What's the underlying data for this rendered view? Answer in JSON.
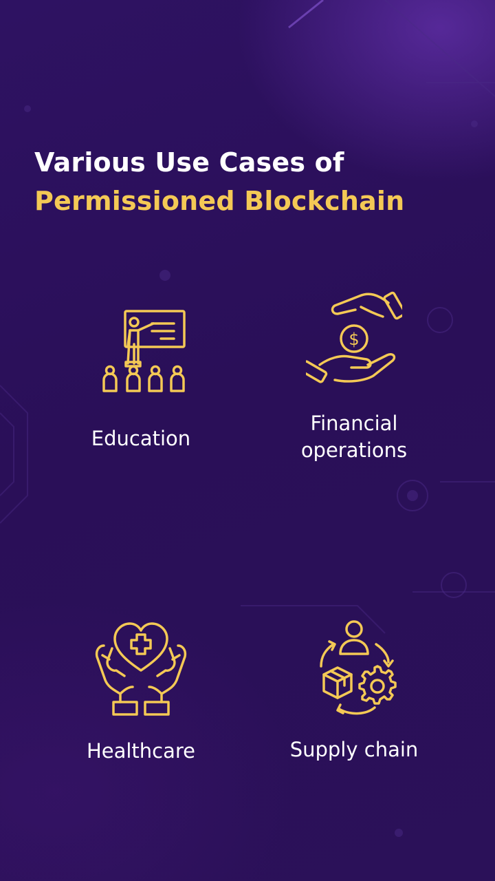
{
  "title": {
    "line1": "Various Use Cases of",
    "line2": "Permissioned Blockchain"
  },
  "colors": {
    "background": "#2b1159",
    "title_primary": "#ffffff",
    "title_accent": "#f4c955",
    "icon": "#f4c955",
    "label": "#ffffff"
  },
  "use_cases": [
    {
      "label": "Education",
      "icon": "teacher-presentation-icon"
    },
    {
      "label": "Financial\noperations",
      "icon": "hands-money-icon"
    },
    {
      "label": "Healthcare",
      "icon": "hands-heart-icon"
    },
    {
      "label": "Supply chain",
      "icon": "supply-cycle-icon"
    }
  ]
}
